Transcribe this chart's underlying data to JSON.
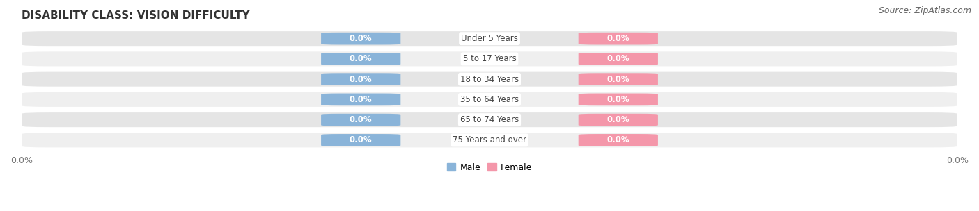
{
  "title": "DISABILITY CLASS: VISION DIFFICULTY",
  "source": "Source: ZipAtlas.com",
  "categories": [
    "Under 5 Years",
    "5 to 17 Years",
    "18 to 34 Years",
    "35 to 64 Years",
    "65 to 74 Years",
    "75 Years and over"
  ],
  "male_values": [
    0.0,
    0.0,
    0.0,
    0.0,
    0.0,
    0.0
  ],
  "female_values": [
    0.0,
    0.0,
    0.0,
    0.0,
    0.0,
    0.0
  ],
  "male_color": "#8ab4d9",
  "female_color": "#f497aa",
  "male_label": "Male",
  "female_label": "Female",
  "bar_bg_color_odd": "#efefef",
  "bar_bg_color_even": "#e5e5e5",
  "xlim": [
    -1.0,
    1.0
  ],
  "title_fontsize": 11,
  "source_fontsize": 9,
  "label_fontsize": 8.5,
  "tick_fontsize": 9,
  "bar_height": 0.72,
  "bg_color": "#ffffff",
  "center_label_color": "#444444",
  "value_label_color": "#ffffff",
  "axis_label_color": "#777777",
  "legend_fontsize": 9
}
